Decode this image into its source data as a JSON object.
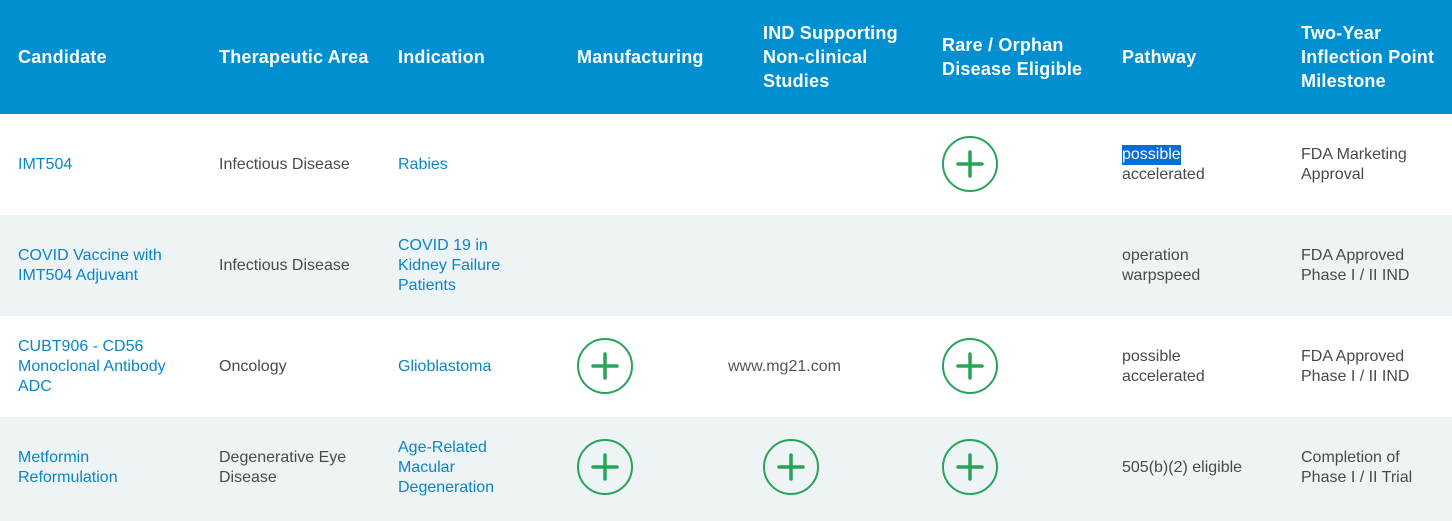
{
  "colors": {
    "header_bg": "#0090d1",
    "header_text": "#ffffff",
    "link_text": "#0a86c6",
    "body_text": "#4a4a4a",
    "row_alt_bg": "#eef3f6",
    "check_green": "#27a35a",
    "selection_bg": "#0a6cd4"
  },
  "headers": [
    "Candidate",
    "Therapeutic Area",
    "Indication",
    "Manufacturing",
    "IND Supporting Non-clinical Studies",
    "Rare / Orphan Disease Eligible",
    "Pathway",
    "Two-Year Inflection Point Milestone"
  ],
  "rows": [
    {
      "candidate": "IMT504",
      "area": "Infectious Disease",
      "indication": "Rabies",
      "manufacturing": false,
      "ind": false,
      "orphan": true,
      "pathway_selected": "possible",
      "pathway_rest": "accelerated",
      "milestone": "FDA Marketing Approval"
    },
    {
      "candidate": "COVID Vaccine with IMT504 Adjuvant",
      "area": "Infectious Disease",
      "indication": "COVID 19 in Kidney Failure Patients",
      "manufacturing": false,
      "ind": false,
      "orphan": false,
      "pathway": "operation warpspeed",
      "milestone": "FDA Approved Phase I / II IND"
    },
    {
      "candidate": "CUBT906 - CD56 Monoclonal Antibody ADC",
      "area": "Oncology",
      "indication": "Glioblastoma",
      "manufacturing": true,
      "ind": false,
      "ind_text": "www.mg21.com",
      "orphan": true,
      "pathway": "possible accelerated",
      "milestone": "FDA Approved Phase I / II IND"
    },
    {
      "candidate": "Metformin Reformulation",
      "area": "Degenerative Eye Disease",
      "indication": "Age-Related Macular Degeneration",
      "manufacturing": true,
      "ind": true,
      "orphan": true,
      "pathway": "505(b)(2) eligible",
      "milestone": "Completion of Phase I / II Trial"
    }
  ],
  "icons": {
    "status_marker": "plus-circle-icon"
  }
}
